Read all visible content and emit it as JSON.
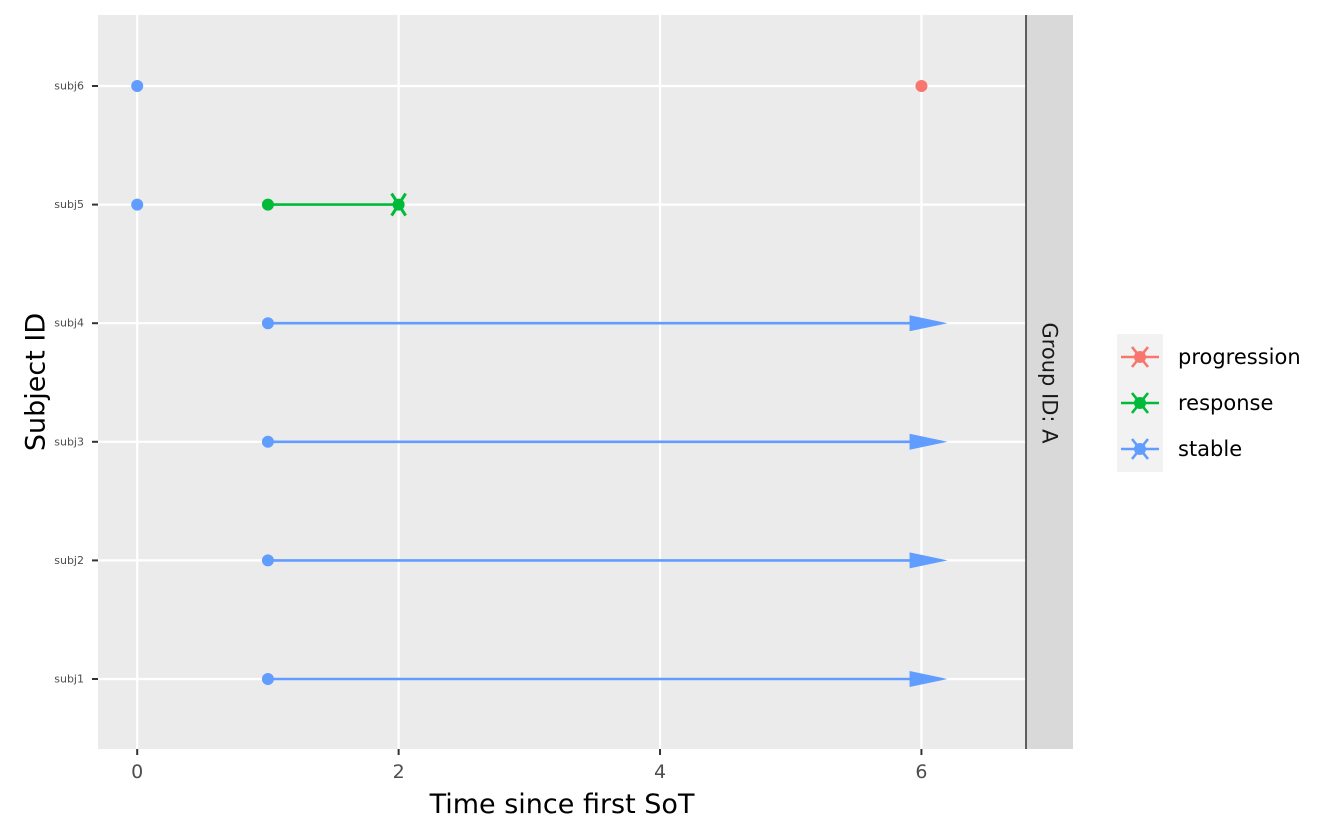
{
  "chart_data": {
    "type": "swimmer",
    "title": "",
    "xlabel": "Time since first SoT",
    "ylabel": "Subject ID",
    "xlim": [
      -0.3,
      6.8
    ],
    "x_ticks": [
      0,
      2,
      4,
      6
    ],
    "x_tick_labels": [
      "0",
      "2",
      "4",
      "6"
    ],
    "categories": [
      "subj1",
      "subj2",
      "subj3",
      "subj4",
      "subj5",
      "subj6"
    ],
    "facet_label": "Group ID: A",
    "grid": true,
    "legend_position": "right",
    "colors": {
      "progression": "#F8766D",
      "response": "#00BA38",
      "stable": "#619CFF",
      "panel_bg": "#EBEBEB",
      "grid": "#FFFFFF",
      "strip_bg": "#D9D9D9"
    },
    "legend": [
      {
        "name": "progression",
        "color": "#F8766D"
      },
      {
        "name": "response",
        "color": "#00BA38"
      },
      {
        "name": "stable",
        "color": "#619CFF"
      }
    ],
    "points": [
      {
        "subject": "subj1",
        "x": 1,
        "status": "stable"
      },
      {
        "subject": "subj2",
        "x": 1,
        "status": "stable"
      },
      {
        "subject": "subj3",
        "x": 1,
        "status": "stable"
      },
      {
        "subject": "subj4",
        "x": 1,
        "status": "stable"
      },
      {
        "subject": "subj5",
        "x": 0,
        "status": "stable"
      },
      {
        "subject": "subj5",
        "x": 1,
        "status": "response"
      },
      {
        "subject": "subj6",
        "x": 0,
        "status": "stable"
      },
      {
        "subject": "subj6",
        "x": 6,
        "status": "progression"
      }
    ],
    "segments": [
      {
        "subject": "subj1",
        "x_start": 1,
        "x_end": 6.2,
        "status": "stable",
        "end": "arrow"
      },
      {
        "subject": "subj2",
        "x_start": 1,
        "x_end": 6.2,
        "status": "stable",
        "end": "arrow"
      },
      {
        "subject": "subj3",
        "x_start": 1,
        "x_end": 6.2,
        "status": "stable",
        "end": "arrow"
      },
      {
        "subject": "subj4",
        "x_start": 1,
        "x_end": 6.2,
        "status": "stable",
        "end": "arrow"
      },
      {
        "subject": "subj5",
        "x_start": 1,
        "x_end": 2,
        "status": "response",
        "end": "cross"
      }
    ]
  }
}
